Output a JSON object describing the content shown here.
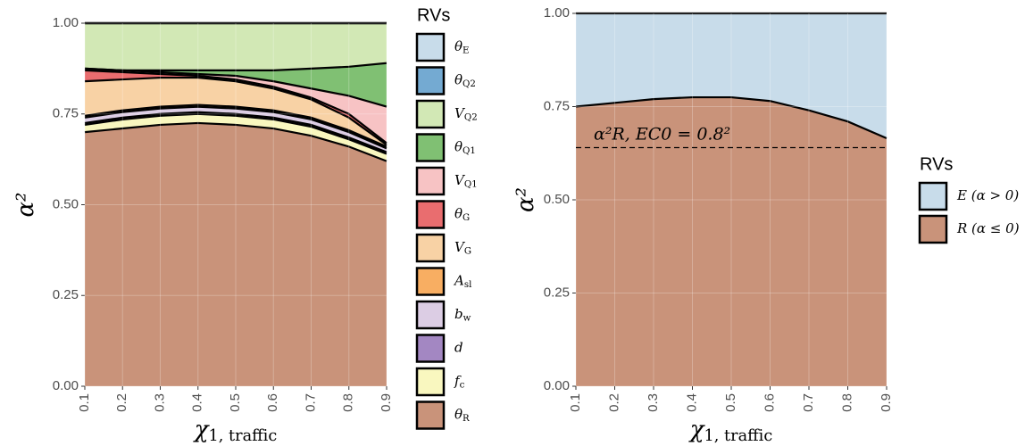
{
  "chart_data": [
    {
      "type": "area",
      "stacked": true,
      "x": [
        0.1,
        0.2,
        0.3,
        0.4,
        0.5,
        0.6,
        0.7,
        0.8,
        0.9
      ],
      "x_label": "χ1, traffic",
      "y_label": "α²",
      "legend_title": "RVs",
      "legend": "right",
      "grid": true,
      "xlim": [
        0.1,
        0.9
      ],
      "xticks": [
        0.1,
        0.2,
        0.3,
        0.4,
        0.5,
        0.6,
        0.7,
        0.8,
        0.9
      ],
      "ylim": [
        0,
        1
      ],
      "yticks": [
        {
          "value": 0,
          "label": "0.00"
        },
        {
          "value": 0.25,
          "label": "0.25"
        },
        {
          "value": 0.5,
          "label": "0.50"
        },
        {
          "value": 0.75,
          "label": "0.75"
        },
        {
          "value": 1,
          "label": "1.00"
        }
      ],
      "series": [
        {
          "name": "θR",
          "color": "#c9937a",
          "values": [
            0.7,
            0.71,
            0.72,
            0.725,
            0.72,
            0.71,
            0.69,
            0.66,
            0.62
          ]
        },
        {
          "name": "fc",
          "color": "#f9f7bf",
          "values": [
            0.02,
            0.025,
            0.025,
            0.025,
            0.025,
            0.025,
            0.025,
            0.02,
            0.02
          ]
        },
        {
          "name": "d",
          "color": "#a387c2",
          "values": [
            0.005,
            0.005,
            0.005,
            0.005,
            0.005,
            0.005,
            0.005,
            0.005,
            0.005
          ]
        },
        {
          "name": "bw",
          "color": "#dccde4",
          "values": [
            0.015,
            0.015,
            0.015,
            0.015,
            0.015,
            0.015,
            0.015,
            0.015,
            0.01
          ]
        },
        {
          "name": "Asl",
          "color": "#f8ae62",
          "values": [
            0.005,
            0.005,
            0.005,
            0.005,
            0.005,
            0.005,
            0.005,
            0.005,
            0.005
          ]
        },
        {
          "name": "VG",
          "color": "#f8d2a5",
          "values": [
            0.095,
            0.085,
            0.08,
            0.075,
            0.07,
            0.06,
            0.05,
            0.035,
            0.005
          ]
        },
        {
          "name": "θG",
          "color": "#e96d6f",
          "values": [
            0.03,
            0.02,
            0.01,
            0.005,
            0.005,
            0.005,
            0.005,
            0.01,
            0.005
          ]
        },
        {
          "name": "VQ1",
          "color": "#f7c3c4",
          "values": [
            0.005,
            0.005,
            0.005,
            0.005,
            0.01,
            0.015,
            0.025,
            0.05,
            0.1
          ]
        },
        {
          "name": "θQ1",
          "color": "#80c073",
          "values": [
            0,
            0,
            0.005,
            0.01,
            0.015,
            0.03,
            0.055,
            0.08,
            0.12
          ]
        },
        {
          "name": "VQ2",
          "color": "#d2e8b5",
          "values": [
            0.125,
            0.13,
            0.13,
            0.13,
            0.13,
            0.13,
            0.125,
            0.12,
            0.11
          ]
        },
        {
          "name": "θQ2",
          "color": "#74aad2",
          "values": [
            0,
            0,
            0,
            0,
            0,
            0,
            0,
            0,
            0
          ]
        },
        {
          "name": "θE",
          "color": "#c8dcea",
          "values": [
            0,
            0,
            0,
            0,
            0,
            0,
            0,
            0,
            0
          ]
        }
      ]
    },
    {
      "type": "area",
      "stacked": true,
      "x": [
        0.1,
        0.2,
        0.3,
        0.4,
        0.5,
        0.6,
        0.7,
        0.8,
        0.9
      ],
      "x_label": "χ1, traffic",
      "y_label": "α²",
      "legend_title": "RVs",
      "legend": "right",
      "grid": true,
      "xlim": [
        0.1,
        0.9
      ],
      "xticks": [
        0.1,
        0.2,
        0.3,
        0.4,
        0.5,
        0.6,
        0.7,
        0.8,
        0.9
      ],
      "ylim": [
        0,
        1
      ],
      "yticks": [
        {
          "value": 0,
          "label": "0.00"
        },
        {
          "value": 0.25,
          "label": "0.25"
        },
        {
          "value": 0.5,
          "label": "0.50"
        },
        {
          "value": 0.75,
          "label": "0.75"
        },
        {
          "value": 1,
          "label": "1.00"
        }
      ],
      "reference_line": {
        "value": 0.64,
        "label": "α²R, EC0 = 0.8²"
      },
      "series": [
        {
          "name": "R (α ≤ 0)",
          "color": "#c9937a",
          "values": [
            0.75,
            0.76,
            0.77,
            0.775,
            0.775,
            0.765,
            0.74,
            0.71,
            0.665
          ]
        },
        {
          "name": "E (α > 0)",
          "color": "#c8dcea",
          "values": [
            0.25,
            0.24,
            0.23,
            0.225,
            0.225,
            0.235,
            0.26,
            0.29,
            0.335
          ]
        }
      ]
    }
  ]
}
